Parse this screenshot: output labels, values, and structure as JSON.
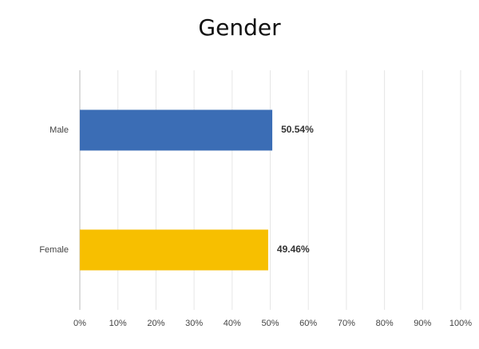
{
  "chart_data": {
    "type": "barh",
    "title": "Gender",
    "categories": [
      "Male",
      "Female"
    ],
    "values": [
      50.54,
      49.46
    ],
    "value_labels": [
      "50.54%",
      "49.46%"
    ],
    "colors": [
      "#3b6db5",
      "#f7bf00"
    ],
    "xlim": [
      0,
      100
    ],
    "xticks": [
      {
        "value": 0,
        "label": "0%"
      },
      {
        "value": 10,
        "label": "10%"
      },
      {
        "value": 20,
        "label": "20%"
      },
      {
        "value": 30,
        "label": "30%"
      },
      {
        "value": 40,
        "label": "40%"
      },
      {
        "value": 50,
        "label": "50%"
      },
      {
        "value": 60,
        "label": "60%"
      },
      {
        "value": 70,
        "label": "70%"
      },
      {
        "value": 80,
        "label": "80%"
      },
      {
        "value": 90,
        "label": "90%"
      },
      {
        "value": 100,
        "label": "100%"
      }
    ],
    "grid": true
  }
}
